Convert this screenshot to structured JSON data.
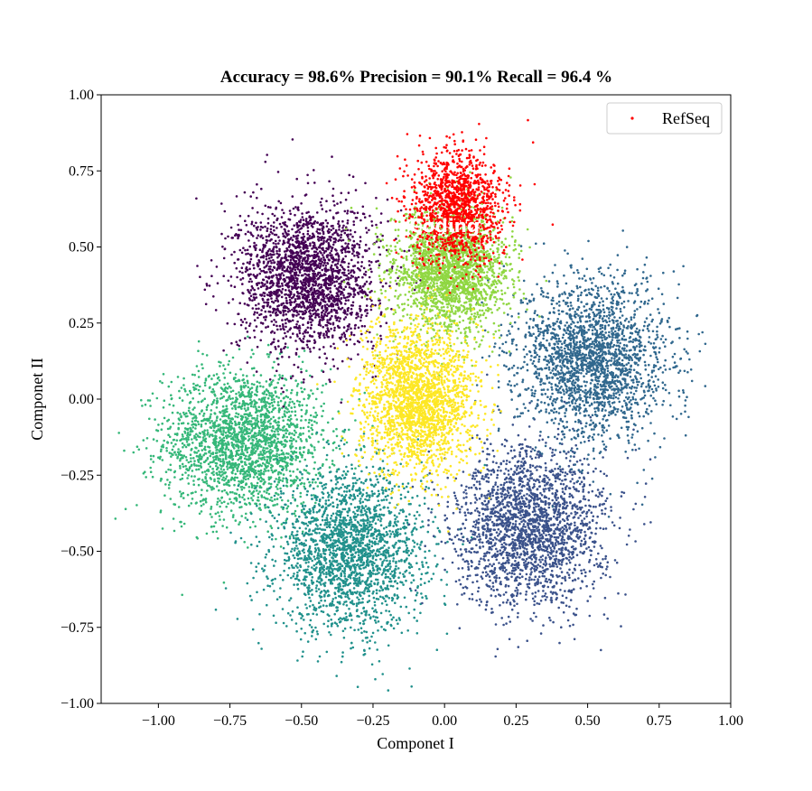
{
  "chart_data": {
    "type": "scatter",
    "title": "Accuracy = 98.6%  Precision = 90.1%  Recall = 96.4 %",
    "xlabel": "Componet I",
    "ylabel": "Componet II",
    "xlim": [
      -1.2,
      1.0
    ],
    "ylim": [
      -1.0,
      1.0
    ],
    "xticks": [
      -1.0,
      -0.75,
      -0.5,
      -0.25,
      0.0,
      0.25,
      0.5,
      0.75,
      1.0
    ],
    "xtick_labels": [
      "−1.00",
      "−0.75",
      "−0.50",
      "−0.25",
      "0.00",
      "0.25",
      "0.50",
      "0.75",
      "1.00"
    ],
    "yticks": [
      -1.0,
      -0.75,
      -0.5,
      -0.25,
      0.0,
      0.25,
      0.5,
      0.75,
      1.0
    ],
    "ytick_labels": [
      "−1.00",
      "−0.75",
      "−0.50",
      "−0.25",
      "0.00",
      "0.25",
      "0.50",
      "0.75",
      "1.00"
    ],
    "grid": false,
    "legend": {
      "placement": "top-right",
      "entries": [
        "RefSeq"
      ]
    },
    "annotations": [
      {
        "text": "Coding",
        "x": 0.0,
        "y": 0.57
      }
    ],
    "clusters": [
      {
        "color": "#440154",
        "center": [
          -0.48,
          0.4
        ],
        "spread": [
          0.12,
          0.12
        ]
      },
      {
        "color": "#3b528b",
        "center": [
          0.3,
          -0.42
        ],
        "spread": [
          0.13,
          0.13
        ]
      },
      {
        "color": "#31688e",
        "center": [
          0.52,
          0.13
        ],
        "spread": [
          0.13,
          0.13
        ]
      },
      {
        "color": "#21918c",
        "center": [
          -0.33,
          -0.5
        ],
        "spread": [
          0.13,
          0.13
        ]
      },
      {
        "color": "#35b779",
        "center": [
          -0.7,
          -0.14
        ],
        "spread": [
          0.14,
          0.12
        ]
      },
      {
        "color": "#90d743",
        "center": [
          0.02,
          0.42
        ],
        "spread": [
          0.1,
          0.1
        ]
      },
      {
        "color": "#fde725",
        "center": [
          -0.09,
          0.0
        ],
        "spread": [
          0.1,
          0.12
        ]
      }
    ],
    "series": [
      {
        "name": "RefSeq",
        "color": "#ff0000",
        "center": [
          0.04,
          0.63
        ],
        "spread": [
          0.08,
          0.09
        ]
      }
    ]
  }
}
